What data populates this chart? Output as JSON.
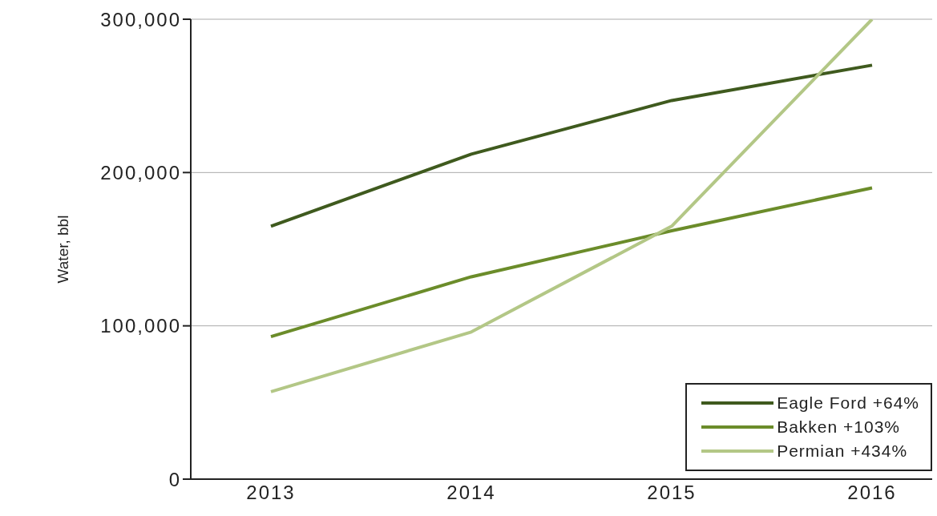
{
  "chart_data": {
    "type": "line",
    "ylabel": "Water, bbl",
    "x": [
      2013,
      2014,
      2015,
      2016
    ],
    "xlim": [
      2012.6,
      2016.3
    ],
    "xticks": [
      2013,
      2014,
      2015,
      2016
    ],
    "ylim": [
      0,
      300000
    ],
    "yticks": [
      {
        "value": 0,
        "label": "0"
      },
      {
        "value": 100000,
        "label": "100,000"
      },
      {
        "value": 200000,
        "label": "200,000"
      },
      {
        "value": 300000,
        "label": "300,000"
      }
    ],
    "grid": "y",
    "legend": "bottom right",
    "marker": "none",
    "line_style": "solid",
    "series": [
      {
        "name": "Eagle Ford +64%",
        "color": "#3f5a1e",
        "values": [
          165000,
          212000,
          247000,
          270000
        ]
      },
      {
        "name": "Bakken +103%",
        "color": "#6b8c2a",
        "values": [
          93000,
          132000,
          162000,
          190000
        ]
      },
      {
        "name": "Permian +434%",
        "color": "#b3c786",
        "values": [
          57000,
          96000,
          165000,
          300000
        ]
      }
    ]
  }
}
